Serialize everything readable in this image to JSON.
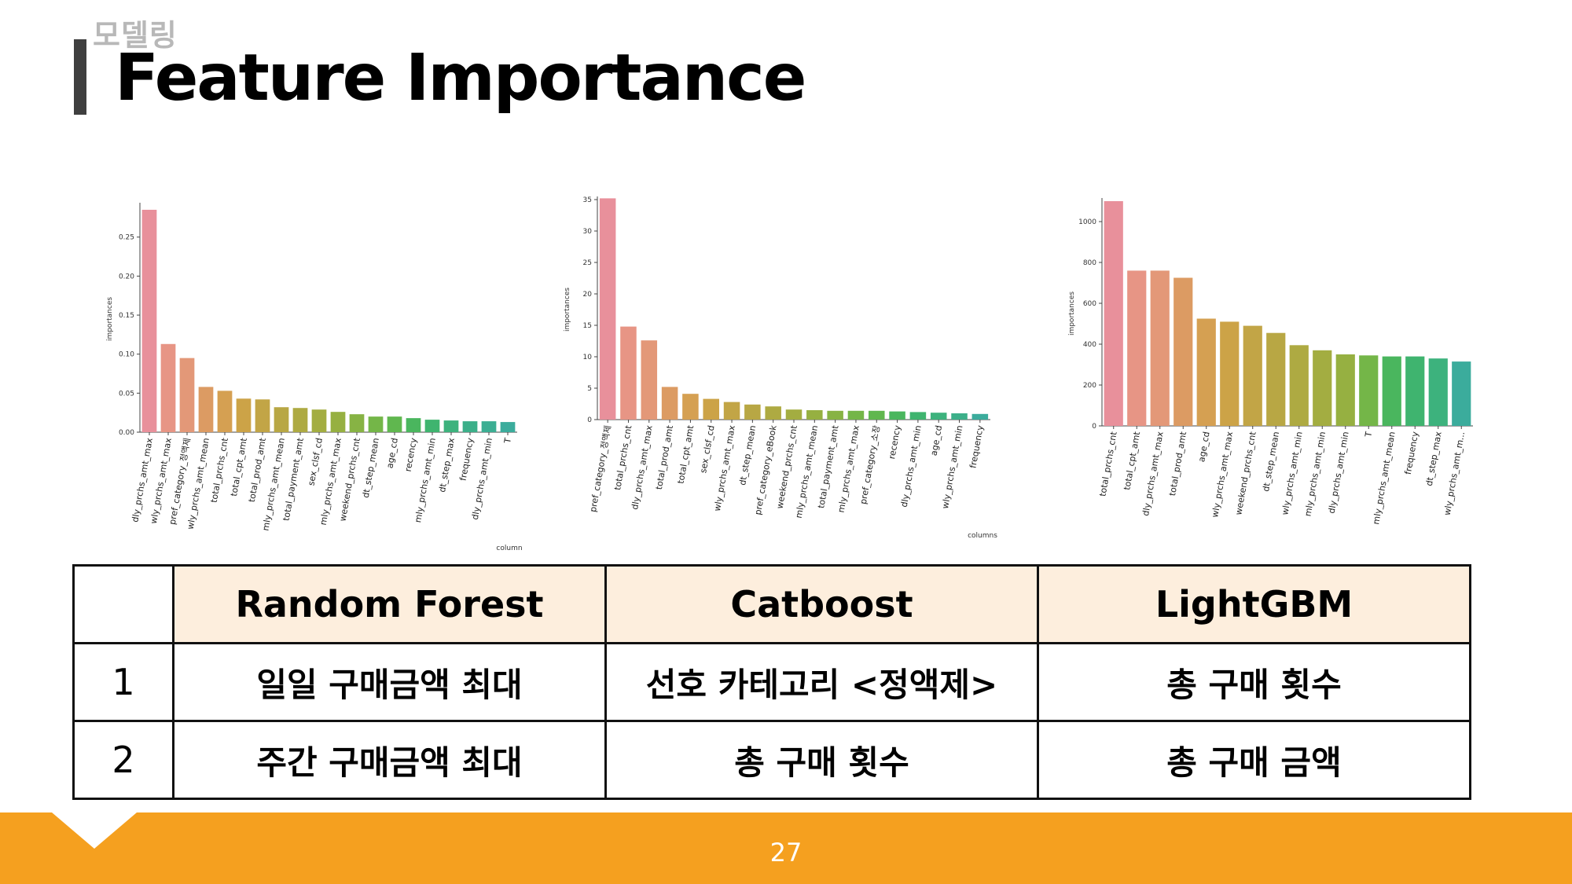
{
  "header": {
    "kicker": "모델링",
    "title": "Feature Importance"
  },
  "chart_data": [
    {
      "type": "bar",
      "model": "Random Forest",
      "xlabel": "column",
      "ylabel": "importances",
      "ylim": [
        0,
        0.29
      ],
      "yticks": [
        0.0,
        0.05,
        0.1,
        0.15,
        0.2,
        0.25
      ],
      "ytick_labels": [
        "0.00",
        "0.05",
        "0.10",
        "0.15",
        "0.20",
        "0.25"
      ],
      "categories": [
        "dly_prchs_amt_max",
        "wly_prchs_amt_max",
        "pref_category_정액제",
        "wly_prchs_amt_mean",
        "total_prchs_cnt",
        "total_cpt_amt",
        "total_prod_amt",
        "mly_prchs_amt_mean",
        "total_payment_amt",
        "sex_clsf_cd",
        "mly_prchs_amt_max",
        "weekend_prchs_cnt",
        "dt_step_mean",
        "age_cd",
        "recency",
        "mly_prchs_amt_min",
        "dt_step_max",
        "frequency",
        "dly_prchs_amt_min",
        "T"
      ],
      "values": [
        0.285,
        0.113,
        0.095,
        0.058,
        0.053,
        0.043,
        0.042,
        0.032,
        0.031,
        0.029,
        0.026,
        0.023,
        0.02,
        0.02,
        0.018,
        0.016,
        0.015,
        0.014,
        0.014,
        0.013
      ],
      "colors": [
        "#e8909b",
        "#e79585",
        "#e39878",
        "#dc9b63",
        "#d5a052",
        "#cca347",
        "#c2a546",
        "#b8a744",
        "#aeaa42",
        "#a3ad41",
        "#96b041",
        "#87b344",
        "#74b648",
        "#60b74f",
        "#4ab65e",
        "#3fb46f",
        "#3db27d",
        "#3caf89",
        "#3cae93",
        "#3bac9c"
      ]
    },
    {
      "type": "bar",
      "model": "Catboost",
      "xlabel": "columns",
      "ylabel": "importances",
      "ylim": [
        0,
        35
      ],
      "yticks": [
        0,
        5,
        10,
        15,
        20,
        25,
        30,
        35
      ],
      "ytick_labels": [
        "0",
        "5",
        "10",
        "15",
        "20",
        "25",
        "30",
        "35"
      ],
      "categories": [
        "pref_category_정액제",
        "total_prchs_cnt",
        "dly_prchs_amt_max",
        "total_prod_amt",
        "total_cpt_amt",
        "sex_clsf_cd",
        "wly_prchs_amt_max",
        "dt_step_mean",
        "pref_category_eBook",
        "weekend_prchs_cnt",
        "mly_prchs_amt_mean",
        "total_payment_amt",
        "mly_prchs_amt_max",
        "pref_category_소장",
        "recency",
        "dly_prchs_amt_min",
        "age_cd",
        "wly_prchs_amt_min",
        "frequency"
      ],
      "values": [
        35.2,
        14.8,
        12.6,
        5.2,
        4.1,
        3.3,
        2.8,
        2.4,
        2.1,
        1.6,
        1.5,
        1.4,
        1.4,
        1.4,
        1.3,
        1.2,
        1.1,
        1.0,
        0.9
      ],
      "colors": [
        "#e8909b",
        "#e79585",
        "#e39878",
        "#dc9b63",
        "#d5a052",
        "#cca347",
        "#c2a546",
        "#b8a744",
        "#aeaa42",
        "#a3ad41",
        "#96b041",
        "#87b344",
        "#74b648",
        "#60b74f",
        "#4ab65e",
        "#3fb46f",
        "#3db27d",
        "#3caf89",
        "#3bac9c"
      ]
    },
    {
      "type": "bar",
      "model": "LightGBM",
      "xlabel": "",
      "ylabel": "importances",
      "ylim": [
        0,
        1100
      ],
      "yticks": [
        0,
        200,
        400,
        600,
        800,
        1000
      ],
      "ytick_labels": [
        "0",
        "200",
        "400",
        "600",
        "800",
        "1000"
      ],
      "categories": [
        "total_prchs_cnt",
        "total_cpt_amt",
        "dly_prchs_amt_max",
        "total_prod_amt",
        "age_cd",
        "wly_prchs_amt_max",
        "weekend_prchs_cnt",
        "dt_step_mean",
        "wly_prchs_amt_min",
        "mly_prchs_amt_min",
        "dly_prchs_amt_min",
        "T",
        "mly_prchs_amt_mean",
        "frequency",
        "dt_step_max",
        "wly_prchs_amt_m..."
      ],
      "values": [
        1100,
        760,
        760,
        725,
        525,
        510,
        490,
        455,
        395,
        370,
        350,
        345,
        340,
        340,
        330,
        315
      ],
      "colors": [
        "#e8909b",
        "#e79585",
        "#e39878",
        "#dc9b63",
        "#d5a052",
        "#cca347",
        "#c2a546",
        "#b8a744",
        "#aeaa42",
        "#a3ad41",
        "#96b041",
        "#74b648",
        "#4ab65e",
        "#3fb46f",
        "#3db27d",
        "#3bac9c"
      ]
    }
  ],
  "table": {
    "headers": [
      "",
      "Random Forest",
      "Catboost",
      "LightGBM"
    ],
    "rows": [
      [
        "1",
        "일일 구매금액 최대",
        "선호 카테고리 <정액제>",
        "총 구매 횟수"
      ],
      [
        "2",
        "주간 구매금액 최대",
        "총 구매 횟수",
        "총 구매 금액"
      ]
    ]
  },
  "footer": {
    "page": "27"
  }
}
